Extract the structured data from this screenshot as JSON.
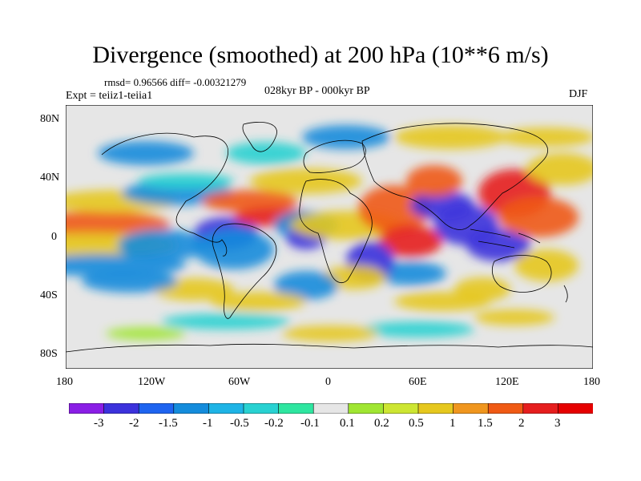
{
  "header": {
    "title": "Divergence (smoothed) at 200 hPa (10**6 m/s)",
    "stats": "rmsd= 0.96566 diff= -0.00321279",
    "experiment": "Expt = teiiz1-teiia1",
    "period": "028kyr BP - 000kyr BP",
    "season": "DJF"
  },
  "axes": {
    "y_ticks": [
      "80N",
      "40N",
      "0",
      "40S",
      "80S"
    ],
    "x_ticks": [
      "180",
      "120W",
      "60W",
      "0",
      "60E",
      "120E",
      "180"
    ]
  },
  "colorbar": {
    "labels": [
      "-3",
      "-2",
      "-1.5",
      "-1",
      "-0.5",
      "-0.2",
      "-0.1",
      "0.1",
      "0.2",
      "0.5",
      "1",
      "1.5",
      "2",
      "3"
    ],
    "colors": [
      "#8a1ee6",
      "#3c32dc",
      "#1e64f0",
      "#148cdc",
      "#1eb4e6",
      "#28d2d2",
      "#2ee6a0",
      "#e6e6e6",
      "#a0e632",
      "#cde632",
      "#e6c81e",
      "#f0961e",
      "#f05a14",
      "#e61e1e",
      "#e60000"
    ]
  },
  "map": {
    "background": "#e6e6e6",
    "palette": {
      "strong_neg": "#3c32dc",
      "mid_neg": "#148cdc",
      "weak_neg": "#28d2d2",
      "weak_pos": "#a0e632",
      "mid_pos": "#e6c81e",
      "strong_pos": "#f05a14",
      "extreme_pos": "#e61e1e"
    }
  }
}
